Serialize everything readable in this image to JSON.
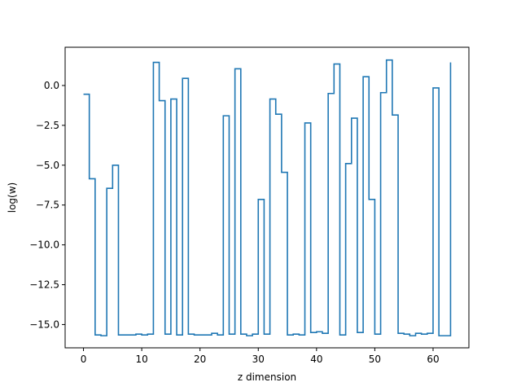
{
  "chart_data": {
    "type": "line",
    "drawstyle": "steps-post",
    "title": "",
    "xlabel": "z dimension",
    "ylabel": "log(w)",
    "xlim": [
      -3.15,
      66.15
    ],
    "ylim": [
      -16.46,
      2.4
    ],
    "xticks": [
      0,
      10,
      20,
      30,
      40,
      50,
      60
    ],
    "xtick_labels": [
      "0",
      "10",
      "20",
      "30",
      "40",
      "50",
      "60"
    ],
    "yticks": [
      0.0,
      -2.5,
      -5.0,
      -7.5,
      -10.0,
      -12.5,
      -15.0
    ],
    "ytick_labels": [
      "0.0",
      "−2.5",
      "−5.0",
      "−7.5",
      "−10.0",
      "−12.5",
      "−15.0"
    ],
    "grid": false,
    "series": [
      {
        "color": "#1f77b4",
        "x": [
          0,
          1,
          2,
          3,
          4,
          5,
          6,
          7,
          8,
          9,
          10,
          11,
          12,
          13,
          14,
          15,
          16,
          17,
          18,
          19,
          20,
          21,
          22,
          23,
          24,
          25,
          26,
          27,
          28,
          29,
          30,
          31,
          32,
          33,
          34,
          35,
          36,
          37,
          38,
          39,
          40,
          41,
          42,
          43,
          44,
          45,
          46,
          47,
          48,
          49,
          50,
          51,
          52,
          53,
          54,
          55,
          56,
          57,
          58,
          59,
          60,
          61,
          62,
          63
        ],
        "y": [
          -0.55,
          -5.85,
          -15.65,
          -15.7,
          -6.45,
          -5.0,
          -15.65,
          -15.65,
          -15.65,
          -15.6,
          -15.65,
          -15.6,
          1.45,
          -0.95,
          -15.6,
          -0.85,
          -15.65,
          0.45,
          -15.6,
          -15.65,
          -15.65,
          -15.65,
          -15.55,
          -15.65,
          -1.9,
          -15.6,
          1.05,
          -15.6,
          -15.7,
          -15.6,
          -7.15,
          -15.6,
          -0.85,
          -1.8,
          -5.45,
          -15.65,
          -15.6,
          -15.65,
          -2.35,
          -15.5,
          -15.45,
          -15.55,
          -0.5,
          1.35,
          -15.65,
          -4.9,
          -2.05,
          -15.5,
          0.55,
          -7.15,
          -15.6,
          -0.45,
          1.6,
          -1.85,
          -15.55,
          -15.6,
          -15.7,
          -15.55,
          -15.6,
          -15.55,
          -0.15,
          -15.7,
          -15.7,
          1.45
        ]
      }
    ]
  }
}
